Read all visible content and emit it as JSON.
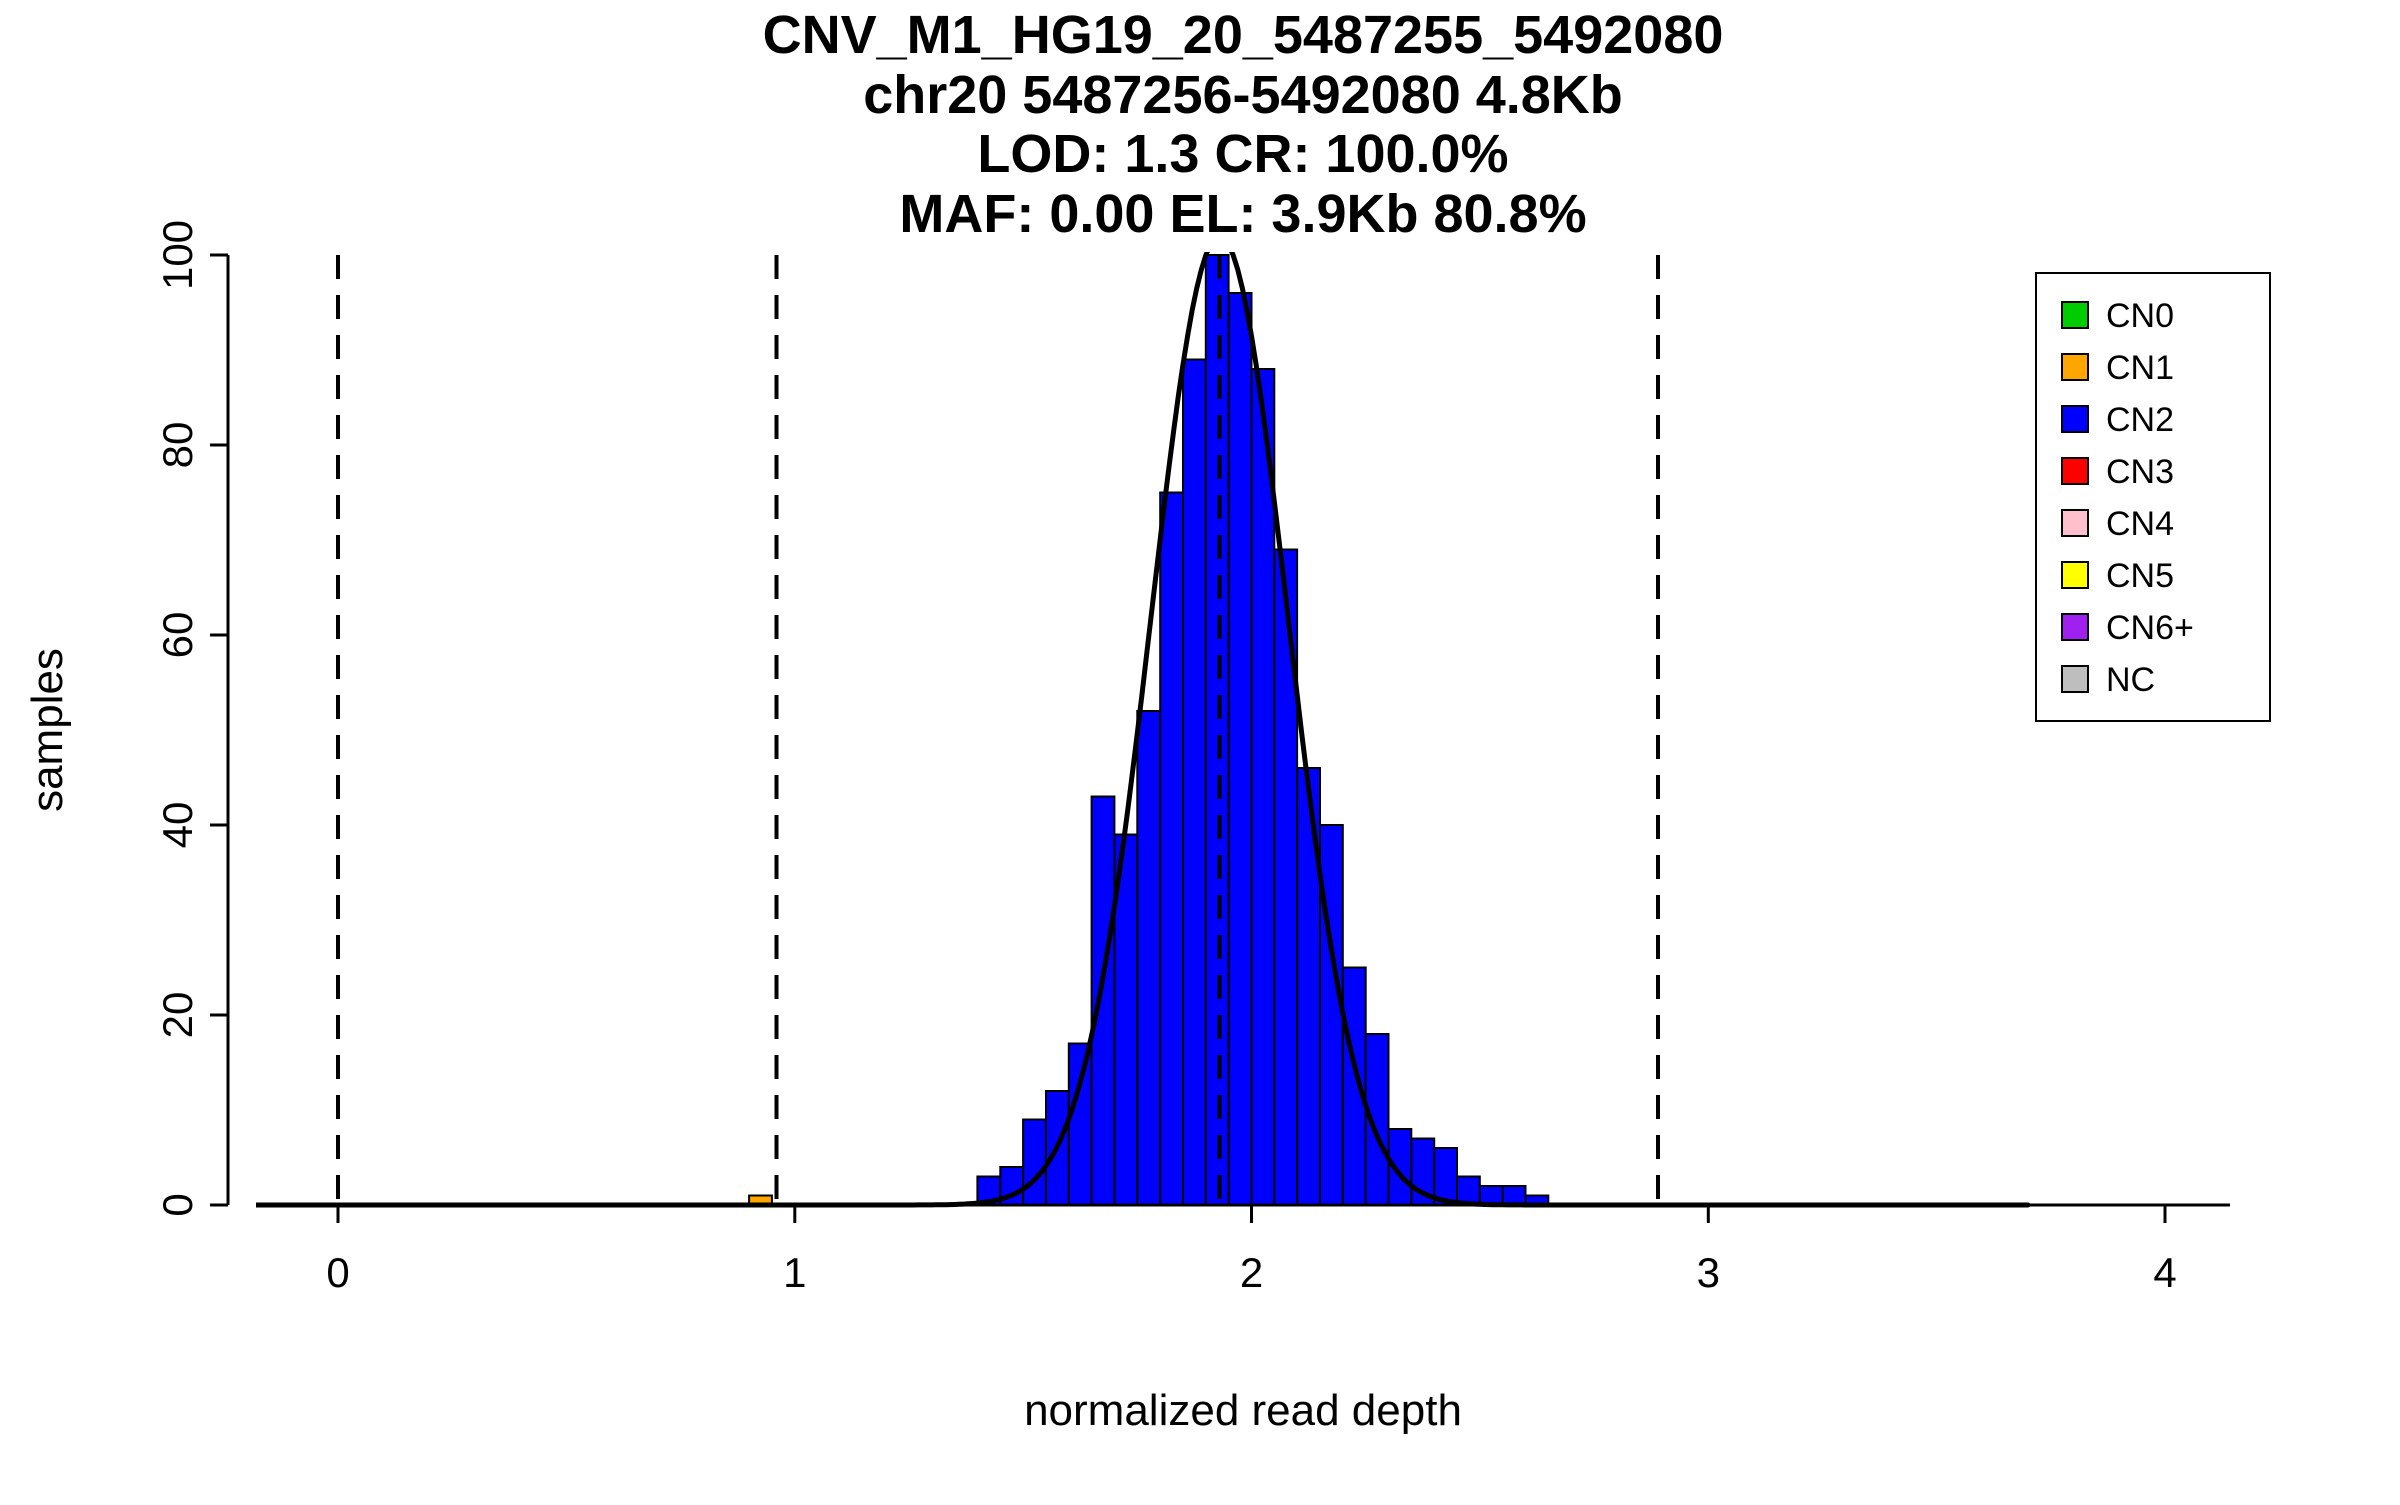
{
  "titles": [
    "CNV_M1_HG19_20_5487255_5492080",
    "chr20 5487256-5492080 4.8Kb",
    "LOD: 1.3 CR: 100.0%",
    "MAF: 0.00 EL: 3.9Kb 80.8%"
  ],
  "chart_data": {
    "type": "bar",
    "subtype": "histogram",
    "title": "CNV_M1_HG19_20_5487255_5492080",
    "subtitle_lines": [
      "chr20 5487256-5492080 4.8Kb",
      "LOD: 1.3 CR: 100.0%",
      "MAF: 0.00 EL: 3.9Kb 80.8%"
    ],
    "xlabel": "normalized read depth",
    "ylabel": "samples",
    "xlim": [
      -0.25,
      4.25
    ],
    "ylim": [
      0,
      100
    ],
    "x_ticks": [
      0,
      1,
      2,
      3,
      4
    ],
    "y_ticks": [
      0,
      20,
      40,
      60,
      80,
      100
    ],
    "grid": false,
    "bin_width": 0.05,
    "bars": [
      {
        "x": 0.9,
        "count": 1,
        "cn": "CN1"
      },
      {
        "x": 1.4,
        "count": 3,
        "cn": "CN2"
      },
      {
        "x": 1.45,
        "count": 4,
        "cn": "CN2"
      },
      {
        "x": 1.5,
        "count": 9,
        "cn": "CN2"
      },
      {
        "x": 1.55,
        "count": 12,
        "cn": "CN2"
      },
      {
        "x": 1.6,
        "count": 17,
        "cn": "CN2"
      },
      {
        "x": 1.65,
        "count": 43,
        "cn": "CN2"
      },
      {
        "x": 1.7,
        "count": 39,
        "cn": "CN2"
      },
      {
        "x": 1.75,
        "count": 52,
        "cn": "CN2"
      },
      {
        "x": 1.8,
        "count": 75,
        "cn": "CN2"
      },
      {
        "x": 1.85,
        "count": 89,
        "cn": "CN2"
      },
      {
        "x": 1.9,
        "count": 100,
        "cn": "CN2"
      },
      {
        "x": 1.95,
        "count": 96,
        "cn": "CN2"
      },
      {
        "x": 2.0,
        "count": 88,
        "cn": "CN2"
      },
      {
        "x": 2.05,
        "count": 69,
        "cn": "CN2"
      },
      {
        "x": 2.1,
        "count": 46,
        "cn": "CN2"
      },
      {
        "x": 2.15,
        "count": 40,
        "cn": "CN2"
      },
      {
        "x": 2.2,
        "count": 25,
        "cn": "CN2"
      },
      {
        "x": 2.25,
        "count": 18,
        "cn": "CN2"
      },
      {
        "x": 2.3,
        "count": 8,
        "cn": "CN2"
      },
      {
        "x": 2.35,
        "count": 7,
        "cn": "CN2"
      },
      {
        "x": 2.4,
        "count": 6,
        "cn": "CN2"
      },
      {
        "x": 2.45,
        "count": 3,
        "cn": "CN2"
      },
      {
        "x": 2.5,
        "count": 2,
        "cn": "CN2"
      },
      {
        "x": 2.55,
        "count": 2,
        "cn": "CN2"
      },
      {
        "x": 2.6,
        "count": 1,
        "cn": "CN2"
      }
    ],
    "dashed_lines_x": [
      0.0,
      0.96,
      1.93,
      2.89
    ],
    "fit_curve": {
      "type": "gaussian",
      "mean": 1.93,
      "sd": 0.15,
      "peak": 102,
      "x_start": -0.18,
      "x_end": 3.7
    },
    "legend": {
      "position": "top-right",
      "entries": [
        {
          "label": "CN0",
          "color": "#00CD00"
        },
        {
          "label": "CN1",
          "color": "#FFA500"
        },
        {
          "label": "CN2",
          "color": "#0000FF"
        },
        {
          "label": "CN3",
          "color": "#FF0000"
        },
        {
          "label": "CN4",
          "color": "#FFC0CB"
        },
        {
          "label": "CN5",
          "color": "#FFFF00"
        },
        {
          "label": "CN6+",
          "color": "#A020F0"
        },
        {
          "label": "NC",
          "color": "#BEBEBE"
        }
      ]
    }
  }
}
